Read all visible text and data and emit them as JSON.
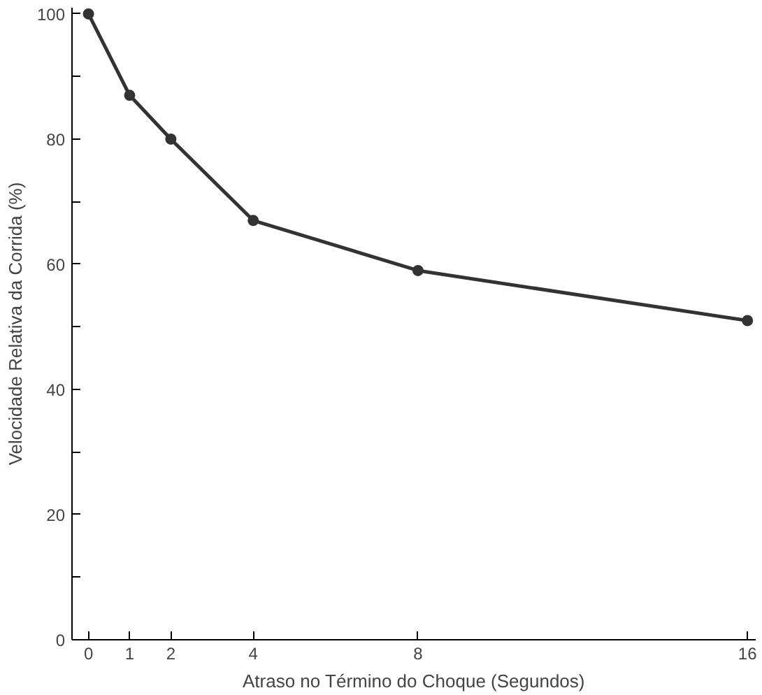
{
  "chart_data": {
    "type": "line",
    "xlabel": "Atraso no Término do Choque (Segundos)",
    "ylabel": "Velocidade Relativa da Corrida (%)",
    "x": [
      0,
      1,
      2,
      4,
      8,
      16
    ],
    "series": [
      {
        "color": "#333333",
        "values": [
          100,
          87,
          80,
          67,
          59,
          51
        ]
      }
    ],
    "xlim": [
      -0.4,
      16.2
    ],
    "xticks": [
      0,
      1,
      2,
      4,
      8,
      16
    ],
    "ylim": [
      0,
      101
    ],
    "yticks": [
      0,
      {
        "value": 10,
        "label": null
      },
      20,
      {
        "value": 30,
        "label": null
      },
      40,
      {
        "value": 50,
        "label": null
      },
      60,
      {
        "value": 70,
        "label": null
      },
      80,
      {
        "value": 90,
        "label": null
      },
      100
    ],
    "grid": false,
    "marker": "circle",
    "line_style": "solid"
  }
}
